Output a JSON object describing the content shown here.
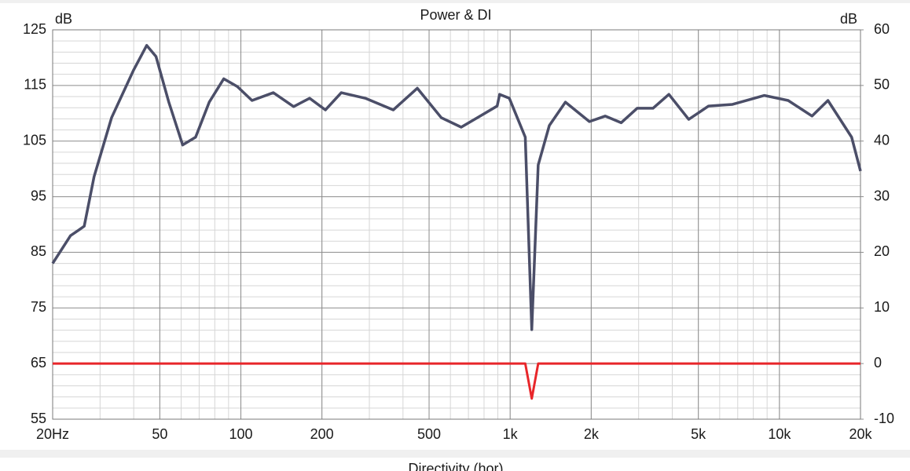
{
  "chart_data": {
    "type": "line",
    "title": "Power & DI",
    "ylabel": "dB",
    "y2label": "dB",
    "x": [
      20,
      23.3,
      25,
      26.2,
      28.5,
      33.1,
      39.9,
      44.7,
      48.4,
      54,
      60.8,
      67.9,
      76.3,
      86.4,
      97,
      110,
      132,
      157,
      180,
      206,
      236,
      290,
      368,
      452,
      555,
      658,
      755,
      895,
      914,
      993,
      1063,
      1138,
      1203,
      1271,
      1398,
      1604,
      1969,
      2256,
      2585,
      2962,
      3392,
      3886,
      4604,
      5455,
      6693,
      8791,
      10777,
      13210,
      15140,
      18540,
      20000
    ],
    "series": [
      {
        "name": "Power",
        "color": "#4b4e68",
        "values": [
          83,
          88,
          89,
          89.7,
          98.6,
          109.2,
          117.7,
          122.2,
          120.2,
          112,
          104.3,
          105.7,
          112,
          116.2,
          114.8,
          112.3,
          113.7,
          111.2,
          112.7,
          110.6,
          113.7,
          112.7,
          110.6,
          114.5,
          109.2,
          107.5,
          109.2,
          111.3,
          113.4,
          112.7,
          109.2,
          105.7,
          71.1,
          100.7,
          107.8,
          112,
          108.5,
          109.5,
          108.3,
          110.9,
          110.9,
          113.4,
          108.9,
          111.3,
          111.6,
          113.2,
          112.3,
          109.5,
          112.3,
          105.7,
          99.6
        ]
      },
      {
        "name": "DI",
        "color": "#e8262a",
        "axis": "y2",
        "values": [
          0,
          0,
          0,
          0,
          0,
          0,
          0,
          0,
          0,
          0,
          0,
          0,
          0,
          0,
          0,
          0,
          0,
          0,
          0,
          0,
          0,
          0,
          0,
          0,
          0,
          0,
          0,
          0,
          0,
          0,
          0,
          0,
          -6.3,
          0,
          0,
          0,
          0,
          0,
          0,
          0,
          0,
          0,
          0,
          0,
          0,
          0,
          0,
          0,
          0,
          0,
          0
        ]
      }
    ],
    "log_x": true,
    "xlim": [
      20,
      20000
    ],
    "xticks": [
      {
        "value": 20,
        "label": "20Hz"
      },
      50,
      100,
      200,
      500,
      {
        "value": 1000,
        "label": "1k"
      },
      {
        "value": 2000,
        "label": "2k"
      },
      {
        "value": 5000,
        "label": "5k"
      },
      {
        "value": 10000,
        "label": "10k"
      },
      {
        "value": 20000,
        "label": "20k"
      }
    ],
    "ylim": [
      55,
      125
    ],
    "yticks": [
      55,
      65,
      75,
      85,
      95,
      105,
      115,
      125
    ],
    "y2lim": [
      -10,
      60
    ],
    "y2ticks": [
      -10,
      0,
      10,
      20,
      30,
      40,
      50,
      60
    ],
    "grid": true,
    "minor_grid": true,
    "minor_divisions": 5
  },
  "next_panel": {
    "title": "Directivity (hor)"
  }
}
